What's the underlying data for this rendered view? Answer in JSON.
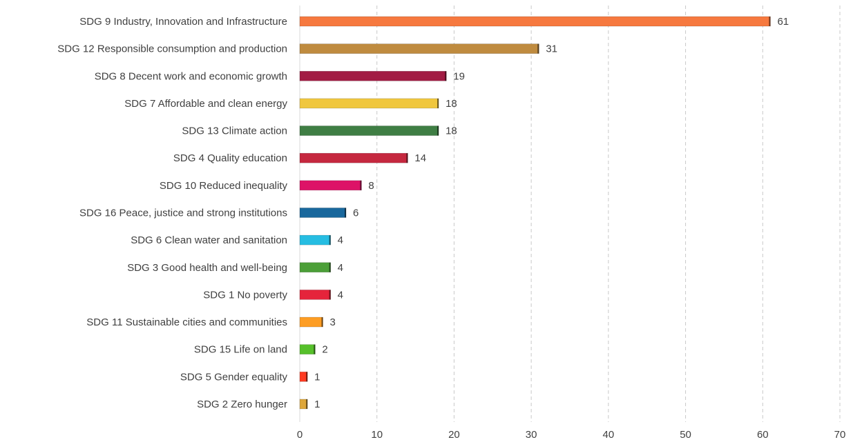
{
  "chart_data": {
    "type": "bar",
    "orientation": "horizontal",
    "title": "",
    "xlabel": "",
    "ylabel": "",
    "xlim": [
      0,
      70
    ],
    "x_ticks": [
      0,
      10,
      20,
      30,
      40,
      50,
      60,
      70
    ],
    "grid": "vertical dashed",
    "legend": "none",
    "categories": [
      "SDG 9 Industry, Innovation and Infrastructure",
      "SDG 12 Responsible consumption and production",
      "SDG 8 Decent work and economic growth",
      "SDG 7 Affordable and clean energy",
      "SDG 13 Climate action",
      "SDG 4 Quality education",
      "SDG 10 Reduced inequality",
      "SDG 16 Peace, justice and strong institutions",
      "SDG 6 Clean water and sanitation",
      "SDG 3 Good health and well-being",
      "SDG 1 No poverty",
      "SDG 11 Sustainable cities and communities",
      "SDG 15 Life on land",
      "SDG 5 Gender equality",
      "SDG 2 Zero hunger"
    ],
    "values": [
      61,
      31,
      19,
      18,
      18,
      14,
      8,
      6,
      4,
      4,
      4,
      3,
      2,
      1,
      1
    ],
    "colors": [
      "#F6793F",
      "#BF8B3F",
      "#A21C44",
      "#F0C73E",
      "#3F7E44",
      "#C5283F",
      "#DD1367",
      "#19689D",
      "#26BDE2",
      "#4C9F38",
      "#E5243B",
      "#FD9D24",
      "#56C02B",
      "#FF3A21",
      "#DDA63A"
    ]
  }
}
